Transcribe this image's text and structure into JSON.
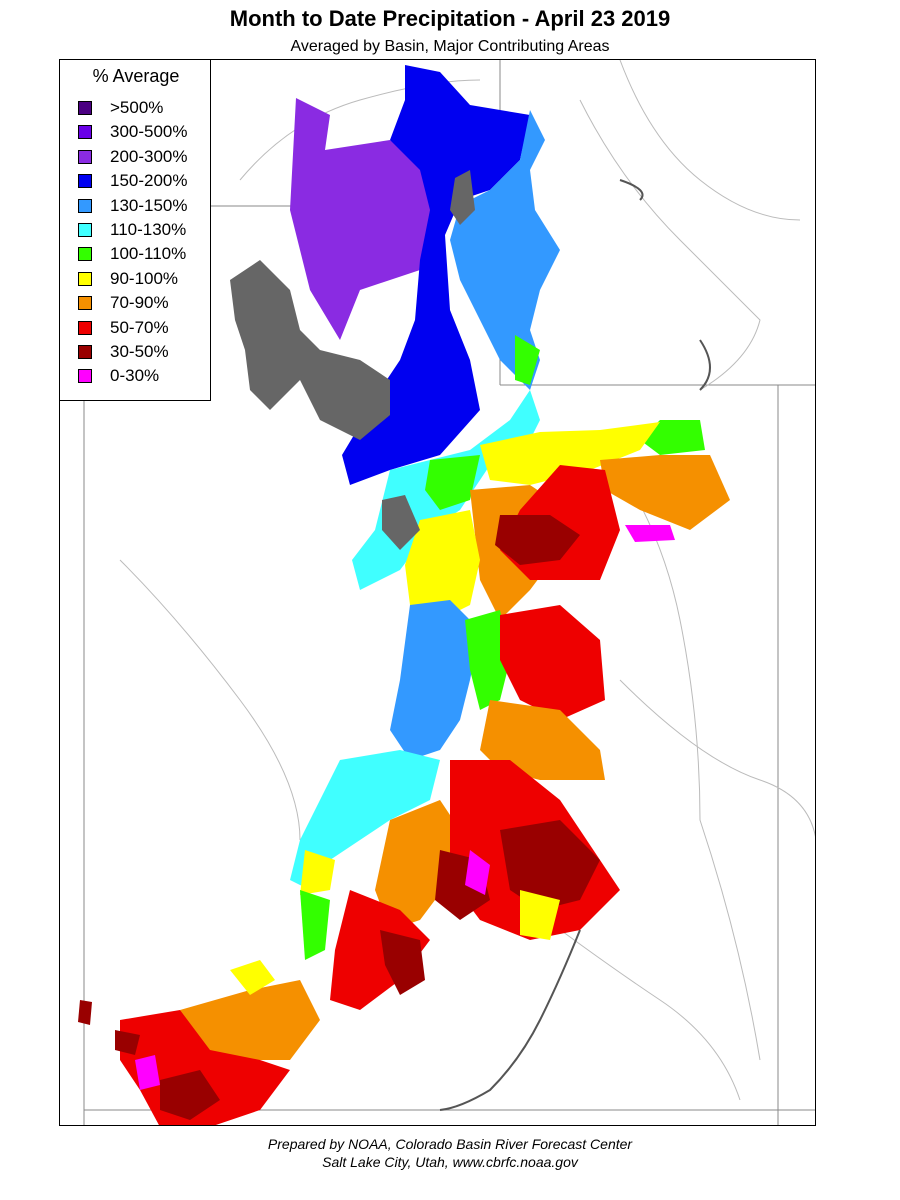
{
  "header": {
    "title": "Month to Date Precipitation - April 23 2019",
    "subtitle": "Averaged by Basin, Major Contributing Areas"
  },
  "legend": {
    "title": "% Average",
    "items": [
      {
        "label": ">500%",
        "color": "#4b0082"
      },
      {
        "label": "300-500%",
        "color": "#6a00e8"
      },
      {
        "label": "200-300%",
        "color": "#8a2be2"
      },
      {
        "label": "150-200%",
        "color": "#0000f0"
      },
      {
        "label": "130-150%",
        "color": "#3399ff"
      },
      {
        "label": "110-130%",
        "color": "#40ffff"
      },
      {
        "label": "100-110%",
        "color": "#33ff00"
      },
      {
        "label": "90-100%",
        "color": "#ffff00"
      },
      {
        "label": "70-90%",
        "color": "#f59000"
      },
      {
        "label": "50-70%",
        "color": "#ee0000"
      },
      {
        "label": "30-50%",
        "color": "#990000"
      },
      {
        "label": "0-30%",
        "color": "#ff00ff"
      }
    ]
  },
  "map": {
    "water_color": "#666666",
    "boundary_color": "#aaaaaa"
  },
  "footer": {
    "credit_line1": "Prepared by NOAA, Colorado Basin River Forecast Center",
    "credit_line2": "Salt Lake City, Utah, www.cbrfc.noaa.gov"
  }
}
